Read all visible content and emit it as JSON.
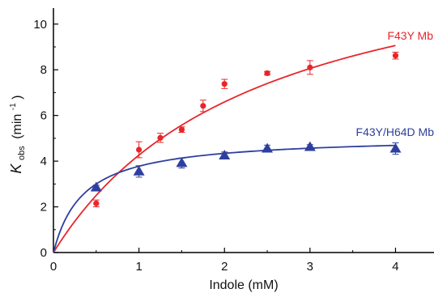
{
  "chart_data": {
    "type": "scatter",
    "title": "",
    "xlabel": "Indole (mM)",
    "ylabel": {
      "main": "K",
      "subscript": "obs",
      "unit_open": "(min",
      "unit_sup": "-1",
      "unit_close": ")"
    },
    "xlim": [
      0,
      4.45
    ],
    "ylim": [
      0,
      10.7
    ],
    "x_ticks": [
      0,
      1,
      2,
      3,
      4
    ],
    "y_ticks": [
      0,
      2,
      4,
      6,
      8,
      10
    ],
    "grid": false,
    "series": [
      {
        "name": "F43Y Mb",
        "color": "#e8262a",
        "marker": "circle",
        "points": [
          {
            "x": 0.5,
            "y": 2.15,
            "err": 0.15
          },
          {
            "x": 1.0,
            "y": 4.5,
            "err": 0.35
          },
          {
            "x": 1.25,
            "y": 5.02,
            "err": 0.2
          },
          {
            "x": 1.5,
            "y": 5.38,
            "err": 0.12
          },
          {
            "x": 1.75,
            "y": 6.42,
            "err": 0.25
          },
          {
            "x": 2.0,
            "y": 7.38,
            "err": 0.2
          },
          {
            "x": 2.5,
            "y": 7.85,
            "err": 0.08
          },
          {
            "x": 3.0,
            "y": 8.1,
            "err": 0.3
          },
          {
            "x": 4.0,
            "y": 8.62,
            "err": 0.15
          }
        ],
        "fit": {
          "model": "hyperbola",
          "vmax": 14.5,
          "km": 2.4,
          "x_range": [
            0,
            4
          ]
        }
      },
      {
        "name": "F43Y/H64D Mb",
        "color": "#2e3f9e",
        "marker": "triangle",
        "points": [
          {
            "x": 0.5,
            "y": 2.85,
            "err": 0.1
          },
          {
            "x": 1.0,
            "y": 3.55,
            "err": 0.25
          },
          {
            "x": 1.5,
            "y": 3.92,
            "err": 0.22
          },
          {
            "x": 2.0,
            "y": 4.25,
            "err": 0.15
          },
          {
            "x": 2.5,
            "y": 4.55,
            "err": 0.15
          },
          {
            "x": 3.0,
            "y": 4.62,
            "err": 0.1
          },
          {
            "x": 4.0,
            "y": 4.55,
            "err": 0.25
          }
        ],
        "fit": {
          "model": "hyperbola",
          "vmax": 5.1,
          "km": 0.35,
          "x_range": [
            0,
            4
          ]
        }
      }
    ]
  }
}
